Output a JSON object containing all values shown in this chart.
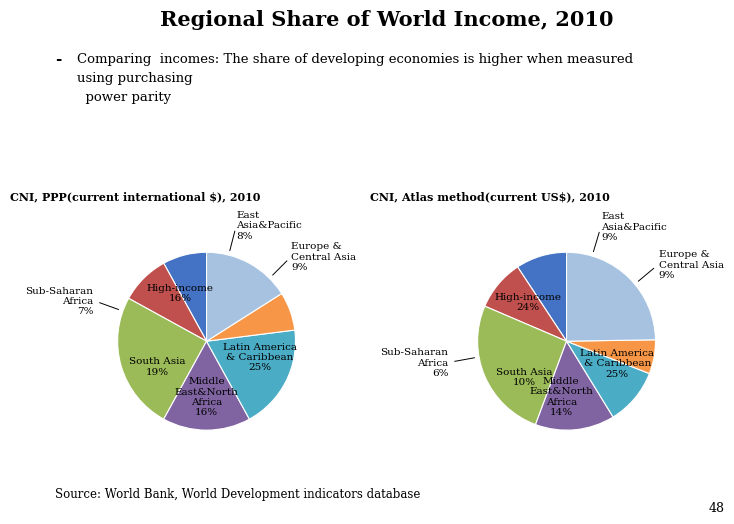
{
  "title": "Regional Share of World Income, 2010",
  "subtitle_line1": "Comparing  incomes: The share of developing economies is higher when measured",
  "subtitle_line2": "using purchasing",
  "subtitle_line3": "  power parity",
  "source": "Source: World Bank, World Development indicators database",
  "page_num": "48",
  "chart1_title": "CNI, PPP(current international $), 2010",
  "chart2_title": "CNI, Atlas method(current US$), 2010",
  "ppp_values": [
    8,
    9,
    25,
    16,
    19,
    7,
    16
  ],
  "atlas_values": [
    9,
    9,
    25,
    14,
    10,
    6,
    24
  ],
  "colors": [
    "#4472C4",
    "#C0504D",
    "#9BBB59",
    "#8064A2",
    "#4BACC6",
    "#F79646",
    "#A6C2E0"
  ],
  "startangle": 90,
  "background_color": "#FFFFFF",
  "ppp_labels_inside": [
    false,
    false,
    true,
    true,
    true,
    false,
    true
  ],
  "atlas_labels_inside": [
    false,
    false,
    true,
    true,
    true,
    false,
    true
  ],
  "slice_names": [
    "East\nAsia&Pacific",
    "Europe &\nCentral Asia",
    "Latin America\n& Caribbean",
    "Middle\nEast&North\nAfrica",
    "South Asia",
    "Sub-Saharan\nAfrica",
    "High-income"
  ]
}
